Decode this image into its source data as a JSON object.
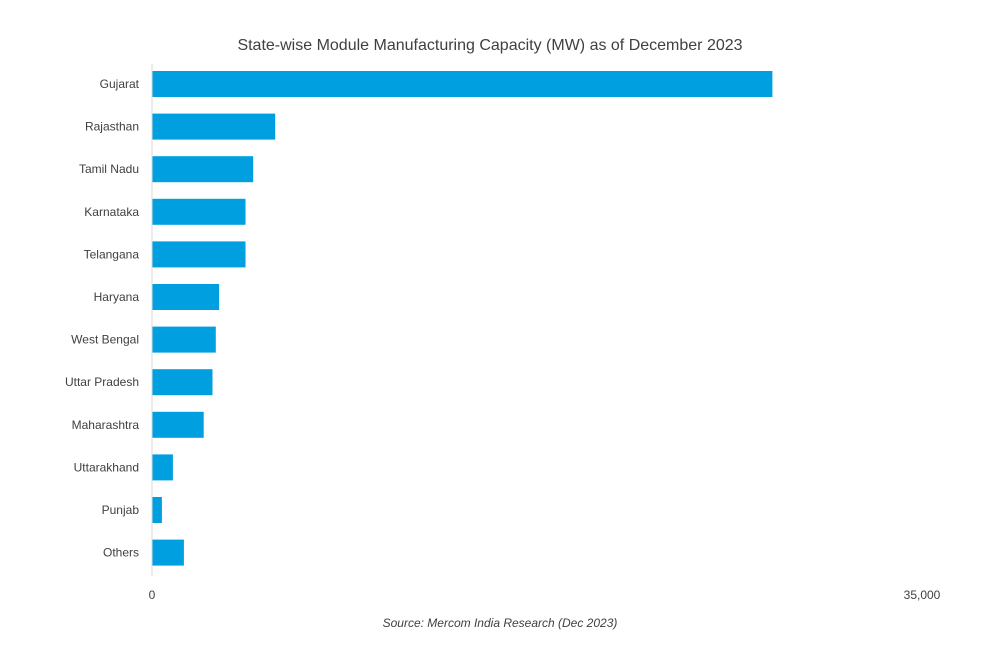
{
  "chart_data": {
    "type": "bar",
    "orientation": "horizontal",
    "title": "State-wise Module Manufacturing Capacity (MW) as of December 2023",
    "categories": [
      "Gujarat",
      "Rajasthan",
      "Tamil Nadu",
      "Karnataka",
      "Telangana",
      "Haryana",
      "West Bengal",
      "Uttar Pradesh",
      "Maharashtra",
      "Uttarakhand",
      "Punjab",
      "Others"
    ],
    "values": [
      28200,
      5600,
      4600,
      4250,
      4250,
      3050,
      2900,
      2750,
      2350,
      950,
      450,
      1450
    ],
    "xlim": [
      0,
      35000
    ],
    "x_tick_labels": [
      "0",
      "35,000"
    ],
    "xlabel": "",
    "ylabel": "",
    "grid": false,
    "legend": "none",
    "bar_color": "#009FDF",
    "source": "Source: Mercom India Research (Dec 2023)"
  }
}
